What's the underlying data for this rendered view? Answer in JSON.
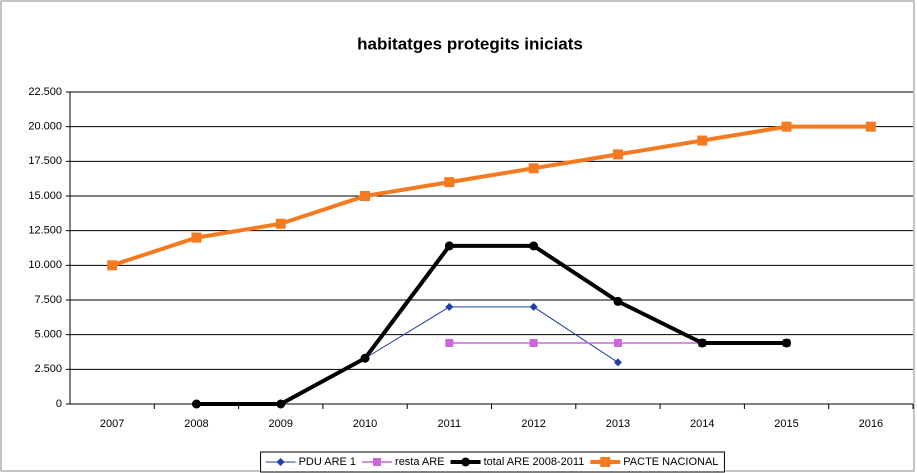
{
  "chart_data": {
    "type": "line",
    "title": "habitatges protegits iniciats",
    "categories": [
      "2007",
      "2008",
      "2009",
      "2010",
      "2011",
      "2012",
      "2013",
      "2014",
      "2015",
      "2016"
    ],
    "series": [
      {
        "name": "PDU ARE 1",
        "color": "#1f3fa8",
        "values": [
          null,
          null,
          null,
          3300,
          7000,
          7000,
          3000,
          null,
          null,
          null
        ]
      },
      {
        "name": "resta ARE",
        "color": "#cc66dd",
        "values": [
          null,
          null,
          null,
          null,
          4400,
          4400,
          4400,
          4400,
          4400,
          null
        ]
      },
      {
        "name": "total ARE 2008-2011",
        "color": "#000000",
        "values": [
          null,
          0,
          0,
          3300,
          11400,
          11400,
          7400,
          4400,
          4400,
          null
        ]
      },
      {
        "name": "PACTE NACIONAL",
        "color": "#f47a20",
        "values": [
          10000,
          12000,
          13000,
          15000,
          16000,
          17000,
          18000,
          19000,
          20000,
          20000
        ]
      }
    ],
    "ylim": [
      0,
      22500
    ],
    "yticks": [
      0,
      {
        "value": 2500,
        "label": "2.500"
      },
      {
        "value": 5000,
        "label": "5.000"
      },
      {
        "value": 7500,
        "label": "7.500"
      },
      {
        "value": 10000,
        "label": "10.000"
      },
      {
        "value": 12500,
        "label": "12.500"
      },
      {
        "value": 15000,
        "label": "15.000"
      },
      {
        "value": 17500,
        "label": "17.500"
      },
      {
        "value": 20000,
        "label": "20.000"
      },
      {
        "value": 22500,
        "label": "22.500"
      }
    ],
    "grid": true,
    "legend": "bottom"
  }
}
